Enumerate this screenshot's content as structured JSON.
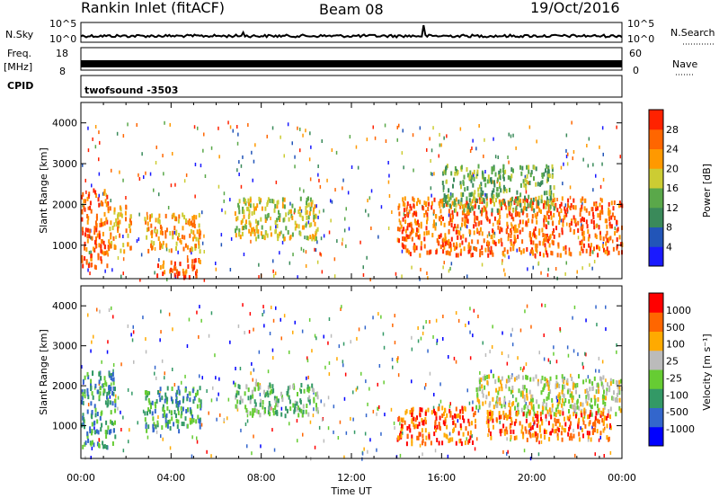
{
  "header": {
    "station": "Rankin Inlet (fitACF)",
    "beam": "Beam 08",
    "date": "19/Oct/2016"
  },
  "strip_panels": {
    "nsky_label": "N.Sky",
    "nsky_ticks": [
      "10^5",
      "10^0"
    ],
    "nsearch_label": "N.Search",
    "nsearch_ticks": [
      "10^5",
      "10^0"
    ],
    "freq_label": "Freq.",
    "freq_unit": "[MHz]",
    "freq_ticks": [
      "18",
      "8"
    ],
    "nave_label": "Nave",
    "nave_ticks": [
      "60",
      "0"
    ],
    "cpid_label": "CPID",
    "cpid_value": "twofsound -3503"
  },
  "colors": {
    "power_scale": [
      "#1a1aff",
      "#2255b8",
      "#3a8a5a",
      "#5aa84a",
      "#cccc33",
      "#ff9900",
      "#ff6600",
      "#ff2200"
    ],
    "velocity_scale": [
      "#0000ff",
      "#3366cc",
      "#339966",
      "#66cc33",
      "#bbbbbb",
      "#ffaa00",
      "#ff6600",
      "#ff0000"
    ]
  },
  "chart_data": [
    {
      "type": "heatmap",
      "name": "power",
      "ylabel": "Slant Range [km]",
      "colorbar_label": "Power [dB]",
      "colorbar_ticks": [
        "4",
        "8",
        "12",
        "16",
        "20",
        "24",
        "28"
      ],
      "ylim": [
        180,
        4500
      ],
      "yticks": [
        "1000",
        "2000",
        "3000",
        "4000"
      ],
      "xlim_hours": [
        0,
        24
      ],
      "xticks": [
        "00:00",
        "04:00",
        "08:00",
        "12:00",
        "16:00",
        "20:00",
        "00:00"
      ],
      "regions": [
        {
          "t": [
            0.0,
            1.2
          ],
          "r": [
            500,
            2400
          ],
          "level": 6
        },
        {
          "t": [
            1.2,
            2.2
          ],
          "r": [
            900,
            2000
          ],
          "level": 5
        },
        {
          "t": [
            2.8,
            5.3
          ],
          "r": [
            900,
            1800
          ],
          "level": 5
        },
        {
          "t": [
            3.2,
            5.3
          ],
          "r": [
            250,
            700
          ],
          "level": 6
        },
        {
          "t": [
            6.8,
            10.5
          ],
          "r": [
            1200,
            2200
          ],
          "level": 4
        },
        {
          "t": [
            14.0,
            24.0
          ],
          "r": [
            800,
            2200
          ],
          "level": 6
        },
        {
          "t": [
            16.0,
            21.0
          ],
          "r": [
            1900,
            3000
          ],
          "level": 3
        }
      ]
    },
    {
      "type": "heatmap",
      "name": "velocity",
      "xlabel": "Time UT",
      "ylabel": "Slant Range [km]",
      "colorbar_label": "Velocity [m s⁻¹]",
      "colorbar_ticks": [
        "-1000",
        "-500",
        "-100",
        "-25",
        "25",
        "100",
        "500",
        "1000"
      ],
      "ylim": [
        180,
        4500
      ],
      "yticks": [
        "1000",
        "2000",
        "3000",
        "4000"
      ],
      "xlim_hours": [
        0,
        24
      ],
      "xticks": [
        "00:00",
        "04:00",
        "08:00",
        "12:00",
        "16:00",
        "20:00",
        "00:00"
      ],
      "regions": [
        {
          "t": [
            0.0,
            1.5
          ],
          "r": [
            500,
            2400
          ],
          "level": 2
        },
        {
          "t": [
            2.8,
            5.3
          ],
          "r": [
            900,
            2000
          ],
          "level": 2
        },
        {
          "t": [
            6.8,
            10.5
          ],
          "r": [
            1300,
            2100
          ],
          "level": 3
        },
        {
          "t": [
            14.0,
            17.5
          ],
          "r": [
            600,
            1500
          ],
          "level": 6
        },
        {
          "t": [
            17.5,
            24.0
          ],
          "r": [
            1300,
            2300
          ],
          "level": 4
        },
        {
          "t": [
            18.0,
            23.5
          ],
          "r": [
            700,
            1400
          ],
          "level": 6
        }
      ]
    }
  ]
}
